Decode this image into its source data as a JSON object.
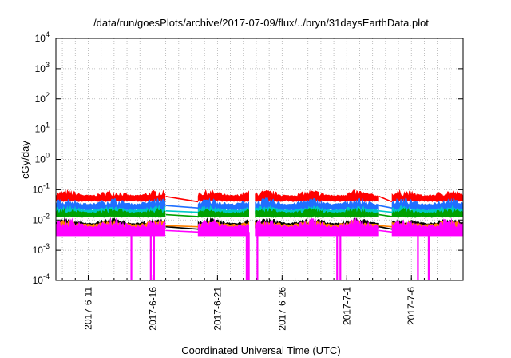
{
  "chart_data": {
    "type": "line",
    "title": "/data/run/goesPlots/archive/2017-07-09/flux/../bryn/31daysEarthData.plot",
    "xlabel": "Coordinated Universal Time (UTC)",
    "ylabel": "cGy/day",
    "yscale": "log",
    "ylim": [
      0.0001,
      10000
    ],
    "xlim": [
      "2017-06-08T12:00",
      "2017-07-10T00:00"
    ],
    "grid": true,
    "legend": "none",
    "y_ticks": [
      {
        "base": "10",
        "exp": "-4",
        "value": 0.0001
      },
      {
        "base": "10",
        "exp": "-3",
        "value": 0.001
      },
      {
        "base": "10",
        "exp": "-2",
        "value": 0.01
      },
      {
        "base": "10",
        "exp": "-1",
        "value": 0.1
      },
      {
        "base": "10",
        "exp": "0",
        "value": 1
      },
      {
        "base": "10",
        "exp": "1",
        "value": 10
      },
      {
        "base": "10",
        "exp": "2",
        "value": 100
      },
      {
        "base": "10",
        "exp": "3",
        "value": 1000
      },
      {
        "base": "10",
        "exp": "4",
        "value": 10000
      }
    ],
    "x_ticks": [
      {
        "label": "2017-6-11",
        "date": "2017-06-11"
      },
      {
        "label": "2017-6-16",
        "date": "2017-06-16"
      },
      {
        "label": "2017-6-21",
        "date": "2017-06-21"
      },
      {
        "label": "2017-6-26",
        "date": "2017-06-26"
      },
      {
        "label": "2017-7-1",
        "date": "2017-07-01"
      },
      {
        "label": "2017-7-6",
        "date": "2017-07-06"
      }
    ],
    "data_segments": [
      {
        "start": "2017-06-08T12:00",
        "end": "2017-06-17T00:00"
      },
      {
        "start": "2017-06-19T12:00",
        "end": "2017-06-23T12:00"
      },
      {
        "start": "2017-06-23T22:00",
        "end": "2017-07-03T12:00"
      },
      {
        "start": "2017-07-04T12:00",
        "end": "2017-07-10T00:00"
      }
    ],
    "drops": [
      {
        "date": "2017-06-14T08:00",
        "value": 0.0001
      },
      {
        "date": "2017-06-15T20:00",
        "value": 0.0001
      },
      {
        "date": "2017-06-16T02:00",
        "value": 0.0001
      },
      {
        "date": "2017-06-23T06:00",
        "value": 0.0001
      },
      {
        "date": "2017-06-23T10:00",
        "value": 0.0001
      },
      {
        "date": "2017-06-24T02:00",
        "value": 0.0001
      },
      {
        "date": "2017-06-30T06:00",
        "value": 0.0001
      },
      {
        "date": "2017-06-30T12:00",
        "value": 0.0001
      },
      {
        "date": "2017-07-06T12:00",
        "value": 0.0001
      },
      {
        "date": "2017-07-07T08:00",
        "value": 0.0001
      }
    ],
    "series": [
      {
        "color": "#ff0000",
        "range": [
          0.04,
          0.1
        ],
        "gap": [
          0.06,
          0.04
        ]
      },
      {
        "color": "#1f6fff",
        "range": [
          0.02,
          0.055
        ],
        "gap": [
          0.03,
          0.025
        ]
      },
      {
        "color": "#00c8c8",
        "range": [
          0.015,
          0.03
        ],
        "gap": [
          0.02,
          0.018
        ]
      },
      {
        "color": "#00a000",
        "range": [
          0.012,
          0.025
        ],
        "gap": [
          0.015,
          0.013
        ]
      },
      {
        "color": "#000000",
        "range": [
          0.005,
          0.012
        ],
        "gap": [
          0.006,
          0.005
        ]
      },
      {
        "color": "#ff8000",
        "range": [
          0.005,
          0.01
        ],
        "gap": [
          0.0065,
          0.006
        ]
      },
      {
        "color": "#ff00ff",
        "range": [
          0.003,
          0.012
        ],
        "gap": [
          0.0045,
          0.004
        ]
      }
    ]
  }
}
